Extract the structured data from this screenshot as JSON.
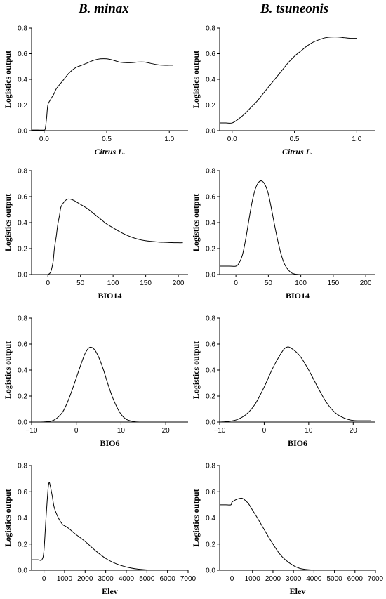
{
  "column_titles": [
    "B. minax",
    "B. tsuneonis"
  ],
  "chart_data": [
    {
      "type": "line",
      "column": 0,
      "row": 0,
      "ylabel": "Logistics output",
      "xlabel": "Citrus L.",
      "xlabel_italic": true,
      "xlim": [
        -0.1,
        1.15
      ],
      "ylim": [
        0,
        0.8
      ],
      "xticks": [
        0.0,
        0.5,
        1.0
      ],
      "xtick_labels": [
        "0.0",
        "0.5",
        "1.0"
      ],
      "yticks": [
        0,
        0.2,
        0.4,
        0.6,
        0.8
      ],
      "ytick_labels": [
        "0.0",
        "0.2",
        "0.4",
        "0.6",
        "0.8"
      ],
      "series": [
        {
          "x": [
            -0.1,
            -0.05,
            0.0,
            0.01,
            0.02,
            0.03,
            0.05,
            0.08,
            0.1,
            0.15,
            0.2,
            0.25,
            0.3,
            0.35,
            0.4,
            0.45,
            0.5,
            0.55,
            0.6,
            0.65,
            0.7,
            0.75,
            0.8,
            0.85,
            0.9,
            0.95,
            1.0,
            1.03
          ],
          "y": [
            0.005,
            0.005,
            0.005,
            0.02,
            0.1,
            0.2,
            0.24,
            0.29,
            0.33,
            0.39,
            0.45,
            0.49,
            0.51,
            0.53,
            0.55,
            0.56,
            0.56,
            0.55,
            0.535,
            0.53,
            0.53,
            0.535,
            0.535,
            0.525,
            0.515,
            0.51,
            0.51,
            0.51
          ]
        }
      ]
    },
    {
      "type": "line",
      "column": 1,
      "row": 0,
      "ylabel": "Logistics output",
      "xlabel": "Citrus L.",
      "xlabel_italic": true,
      "xlim": [
        -0.1,
        1.15
      ],
      "ylim": [
        0,
        0.8
      ],
      "xticks": [
        0.0,
        0.5,
        1.0
      ],
      "xtick_labels": [
        "0.0",
        "0.5",
        "1.0"
      ],
      "yticks": [
        0,
        0.2,
        0.4,
        0.6,
        0.8
      ],
      "ytick_labels": [
        "0.0",
        "0.2",
        "0.4",
        "0.6",
        "0.8"
      ],
      "series": [
        {
          "x": [
            -0.1,
            -0.05,
            0.0,
            0.05,
            0.1,
            0.15,
            0.2,
            0.25,
            0.3,
            0.35,
            0.4,
            0.45,
            0.5,
            0.55,
            0.6,
            0.65,
            0.7,
            0.75,
            0.8,
            0.85,
            0.9,
            0.95,
            1.0
          ],
          "y": [
            0.06,
            0.06,
            0.06,
            0.09,
            0.13,
            0.18,
            0.23,
            0.29,
            0.35,
            0.41,
            0.47,
            0.53,
            0.58,
            0.62,
            0.66,
            0.69,
            0.71,
            0.725,
            0.73,
            0.73,
            0.725,
            0.72,
            0.72
          ]
        }
      ]
    },
    {
      "type": "line",
      "column": 0,
      "row": 1,
      "ylabel": "Logistics output",
      "xlabel": "BIO14",
      "xlabel_italic": false,
      "xlim": [
        -25,
        215
      ],
      "ylim": [
        0,
        0.8
      ],
      "xticks": [
        0,
        50,
        100,
        150,
        200
      ],
      "xtick_labels": [
        "0",
        "50",
        "100",
        "150",
        "200"
      ],
      "yticks": [
        0,
        0.2,
        0.4,
        0.6,
        0.8
      ],
      "ytick_labels": [
        "0.0",
        "0.2",
        "0.4",
        "0.6",
        "0.8"
      ],
      "series": [
        {
          "x": [
            0,
            3,
            5,
            8,
            10,
            13,
            15,
            18,
            20,
            25,
            30,
            35,
            40,
            50,
            60,
            70,
            80,
            90,
            100,
            110,
            120,
            130,
            140,
            150,
            160,
            170,
            180,
            190,
            200,
            207
          ],
          "y": [
            0,
            0.01,
            0.03,
            0.1,
            0.2,
            0.3,
            0.38,
            0.46,
            0.52,
            0.56,
            0.58,
            0.58,
            0.57,
            0.54,
            0.51,
            0.47,
            0.43,
            0.39,
            0.36,
            0.33,
            0.305,
            0.285,
            0.27,
            0.26,
            0.255,
            0.25,
            0.248,
            0.246,
            0.245,
            0.245
          ]
        }
      ]
    },
    {
      "type": "line",
      "column": 1,
      "row": 1,
      "ylabel": "Logistics output",
      "xlabel": "BIO14",
      "xlabel_italic": false,
      "xlim": [
        -25,
        215
      ],
      "ylim": [
        0,
        0.8
      ],
      "xticks": [
        0,
        50,
        100,
        150,
        200
      ],
      "xtick_labels": [
        "0",
        "50",
        "100",
        "150",
        "200"
      ],
      "yticks": [
        0,
        0.2,
        0.4,
        0.6,
        0.8
      ],
      "ytick_labels": [
        "0.0",
        "0.2",
        "0.4",
        "0.6",
        "0.8"
      ],
      "series": [
        {
          "x": [
            -25,
            -10,
            0,
            5,
            10,
            15,
            20,
            25,
            30,
            35,
            40,
            45,
            50,
            55,
            60,
            65,
            70,
            75,
            80,
            85,
            90,
            95,
            100
          ],
          "y": [
            0.065,
            0.065,
            0.065,
            0.09,
            0.15,
            0.27,
            0.42,
            0.56,
            0.66,
            0.71,
            0.72,
            0.69,
            0.62,
            0.5,
            0.37,
            0.25,
            0.15,
            0.08,
            0.04,
            0.015,
            0.005,
            0.001,
            0
          ]
        }
      ]
    },
    {
      "type": "line",
      "column": 0,
      "row": 2,
      "ylabel": "Logistics output",
      "xlabel": "BIO6",
      "xlabel_italic": false,
      "xlim": [
        -10,
        25
      ],
      "ylim": [
        0,
        0.8
      ],
      "xticks": [
        -10,
        0,
        10,
        20
      ],
      "xtick_labels": [
        "−10",
        "0",
        "10",
        "20"
      ],
      "yticks": [
        0,
        0.2,
        0.4,
        0.6,
        0.8
      ],
      "ytick_labels": [
        "0.0",
        "0.2",
        "0.4",
        "0.6",
        "0.8"
      ],
      "series": [
        {
          "x": [
            -10,
            -8,
            -6,
            -5,
            -4,
            -3,
            -2,
            -1,
            0,
            1,
            2,
            3,
            4,
            5,
            6,
            7,
            8,
            9,
            10,
            11,
            12,
            13,
            14
          ],
          "y": [
            0,
            0,
            0.005,
            0.015,
            0.04,
            0.08,
            0.15,
            0.24,
            0.34,
            0.44,
            0.53,
            0.575,
            0.56,
            0.5,
            0.41,
            0.3,
            0.2,
            0.12,
            0.06,
            0.025,
            0.01,
            0.003,
            0
          ]
        }
      ]
    },
    {
      "type": "line",
      "column": 1,
      "row": 2,
      "ylabel": "Logistics output",
      "xlabel": "BIO6",
      "xlabel_italic": false,
      "xlim": [
        -10,
        25
      ],
      "ylim": [
        0,
        0.8
      ],
      "xticks": [
        -10,
        0,
        10,
        20
      ],
      "xtick_labels": [
        "−10",
        "0",
        "10",
        "20"
      ],
      "yticks": [
        0,
        0.2,
        0.4,
        0.6,
        0.8
      ],
      "ytick_labels": [
        "0.0",
        "0.2",
        "0.4",
        "0.6",
        "0.8"
      ],
      "series": [
        {
          "x": [
            -10,
            -8,
            -6,
            -4,
            -2,
            0,
            2,
            4,
            5,
            6,
            8,
            10,
            12,
            14,
            16,
            18,
            20,
            22,
            24
          ],
          "y": [
            0,
            0.005,
            0.02,
            0.06,
            0.14,
            0.27,
            0.42,
            0.54,
            0.575,
            0.57,
            0.51,
            0.4,
            0.27,
            0.15,
            0.07,
            0.03,
            0.012,
            0.01,
            0.01
          ]
        }
      ]
    },
    {
      "type": "line",
      "column": 0,
      "row": 3,
      "ylabel": "Logistics output",
      "xlabel": "Elev",
      "xlabel_italic": false,
      "xlim": [
        -600,
        7000
      ],
      "ylim": [
        0,
        0.8
      ],
      "xticks": [
        0,
        1000,
        2000,
        3000,
        4000,
        5000,
        6000,
        7000
      ],
      "xtick_labels": [
        "0",
        "1000",
        "2000",
        "3000",
        "4000",
        "5000",
        "6000",
        "7000"
      ],
      "yticks": [
        0,
        0.2,
        0.4,
        0.6,
        0.8
      ],
      "ytick_labels": [
        "0.0",
        "0.2",
        "0.4",
        "0.6",
        "0.8"
      ],
      "series": [
        {
          "x": [
            -600,
            -300,
            -100,
            0,
            100,
            200,
            250,
            300,
            400,
            500,
            700,
            900,
            1000,
            1200,
            1500,
            2000,
            2500,
            3000,
            3500,
            4000,
            4500,
            5000,
            5500
          ],
          "y": [
            0.08,
            0.08,
            0.08,
            0.15,
            0.4,
            0.62,
            0.67,
            0.65,
            0.57,
            0.48,
            0.4,
            0.35,
            0.34,
            0.32,
            0.28,
            0.22,
            0.15,
            0.09,
            0.05,
            0.025,
            0.01,
            0.003,
            0
          ]
        }
      ]
    },
    {
      "type": "line",
      "column": 1,
      "row": 3,
      "ylabel": "Logistics output",
      "xlabel": "Elev",
      "xlabel_italic": false,
      "xlim": [
        -600,
        7000
      ],
      "ylim": [
        0,
        0.8
      ],
      "xticks": [
        0,
        1000,
        2000,
        3000,
        4000,
        5000,
        6000,
        7000
      ],
      "xtick_labels": [
        "0",
        "1000",
        "2000",
        "3000",
        "4000",
        "5000",
        "6000",
        "7000"
      ],
      "yticks": [
        0,
        0.2,
        0.4,
        0.6,
        0.8
      ],
      "ytick_labels": [
        "0.0",
        "0.2",
        "0.4",
        "0.6",
        "0.8"
      ],
      "series": [
        {
          "x": [
            -600,
            -300,
            -50,
            0,
            200,
            400,
            500,
            600,
            800,
            1000,
            1200,
            1500,
            1800,
            2000,
            2300,
            2600,
            3000,
            3300,
            3600,
            4000,
            4500
          ],
          "y": [
            0.5,
            0.5,
            0.5,
            0.52,
            0.54,
            0.55,
            0.55,
            0.54,
            0.51,
            0.46,
            0.41,
            0.33,
            0.25,
            0.2,
            0.13,
            0.08,
            0.035,
            0.015,
            0.006,
            0.001,
            0
          ]
        }
      ]
    }
  ]
}
